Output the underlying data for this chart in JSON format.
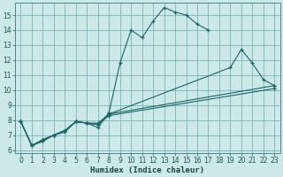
{
  "xlabel": "Humidex (Indice chaleur)",
  "background_color": "#cce8e8",
  "grid_color": "#6aabab",
  "line_color": "#1a6666",
  "xlim": [
    -0.5,
    23.5
  ],
  "ylim": [
    5.8,
    15.8
  ],
  "yticks": [
    6,
    7,
    8,
    9,
    10,
    11,
    12,
    13,
    14,
    15
  ],
  "xticks": [
    0,
    1,
    2,
    3,
    4,
    5,
    6,
    7,
    8,
    9,
    10,
    11,
    12,
    13,
    14,
    15,
    16,
    17,
    18,
    19,
    20,
    21,
    22,
    23
  ],
  "xlabel_fontsize": 6.5,
  "tick_fontsize": 5.5,
  "series1_x": [
    0,
    1,
    2,
    3,
    4,
    5,
    6,
    7,
    8,
    9,
    10,
    11,
    12,
    13,
    14,
    15,
    16,
    17
  ],
  "series1_y": [
    7.9,
    6.3,
    6.6,
    7.0,
    7.2,
    7.9,
    7.8,
    7.5,
    8.5,
    11.8,
    14.0,
    13.5,
    14.6,
    15.5,
    15.2,
    15.0,
    14.4,
    14.0
  ],
  "series2_x": [
    0,
    1,
    2,
    3,
    4,
    5,
    6,
    7,
    8,
    19,
    20,
    21,
    22,
    23
  ],
  "series2_y": [
    7.9,
    6.3,
    6.6,
    7.0,
    7.3,
    7.9,
    7.8,
    7.8,
    8.4,
    11.5,
    12.7,
    11.8,
    10.7,
    10.3
  ],
  "series3_x": [
    0,
    1,
    2,
    3,
    4,
    5,
    6,
    7,
    8,
    23
  ],
  "series3_y": [
    7.9,
    6.3,
    6.7,
    7.0,
    7.3,
    7.9,
    7.8,
    7.7,
    8.4,
    10.3
  ],
  "series4_x": [
    0,
    1,
    2,
    3,
    4,
    5,
    6,
    7,
    8,
    23
  ],
  "series4_y": [
    7.9,
    6.3,
    6.7,
    7.0,
    7.3,
    7.9,
    7.8,
    7.7,
    8.3,
    10.1
  ]
}
